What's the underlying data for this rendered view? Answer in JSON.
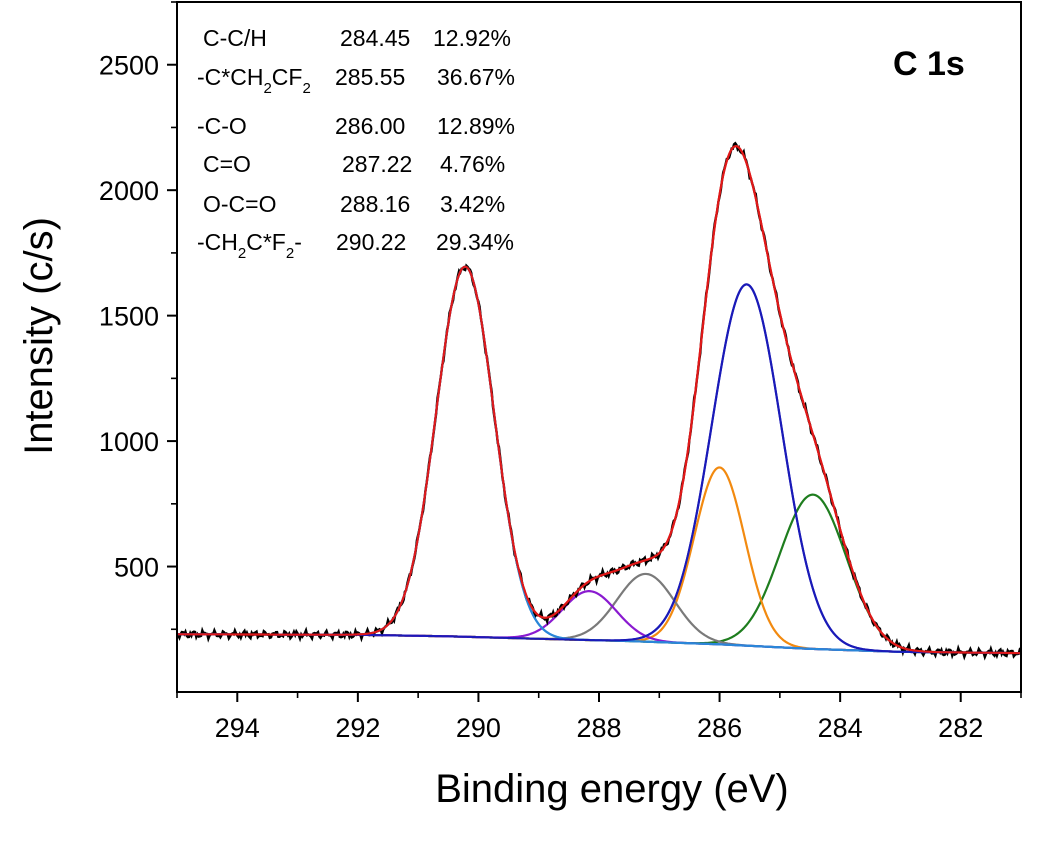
{
  "chart_data": {
    "type": "line",
    "title": "",
    "panel_label": "C 1s",
    "xlabel": "Binding energy (eV)",
    "ylabel": "Intensity (c/s)",
    "xlim": [
      295,
      281
    ],
    "ylim": [
      0,
      2750
    ],
    "x_reversed": true,
    "x_ticks": [
      294,
      292,
      290,
      288,
      286,
      284,
      282
    ],
    "y_ticks": [
      500,
      1000,
      1500,
      2000,
      2500
    ],
    "grid": false,
    "peak_table": [
      {
        "label": "C-C/H",
        "position": "284.45",
        "percent": "12.92%"
      },
      {
        "label": "-C*CH2CF2",
        "label_html": [
          "-C*CH",
          "2",
          "CF",
          "2"
        ],
        "position": "285.55",
        "percent": "36.67%"
      },
      {
        "label": "-C-O",
        "position": "286.00",
        "percent": "12.89%"
      },
      {
        "label": "C=O",
        "position": "287.22",
        "percent": "4.76%"
      },
      {
        "label": "O-C=O",
        "position": "288.16",
        "percent": "3.42%"
      },
      {
        "label": "-CH2C*F2-",
        "label_html": [
          "-CH",
          "2",
          "C*F",
          "2",
          "-"
        ],
        "position": "290.22",
        "percent": "29.34%"
      }
    ],
    "background": {
      "x": [
        295,
        292,
        290.5,
        289,
        287.5,
        286,
        284.5,
        283,
        281
      ],
      "y": [
        230,
        228,
        222,
        212,
        203,
        190,
        172,
        160,
        155
      ]
    },
    "components": [
      {
        "label": "C-C/H",
        "center": 284.45,
        "height": 615,
        "sigma": 0.55,
        "color": "#1e7d1e"
      },
      {
        "label": "-C*CH2CF2",
        "center": 285.55,
        "height": 1440,
        "sigma": 0.58,
        "color": "#1a1ab8"
      },
      {
        "label": "-C-O",
        "center": 286.0,
        "height": 705,
        "sigma": 0.42,
        "color": "#f28a10"
      },
      {
        "label": "C=O",
        "center": 287.22,
        "height": 270,
        "sigma": 0.48,
        "color": "#7a7a7a"
      },
      {
        "label": "O-C=O",
        "center": 288.16,
        "height": 195,
        "sigma": 0.45,
        "color": "#8a1ad0"
      },
      {
        "label": "-CH2C*F2-",
        "center": 290.22,
        "height": 1475,
        "sigma": 0.48,
        "color": "#2a86d8"
      }
    ],
    "envelope_color": "#e01818",
    "data_color": "#000000"
  }
}
